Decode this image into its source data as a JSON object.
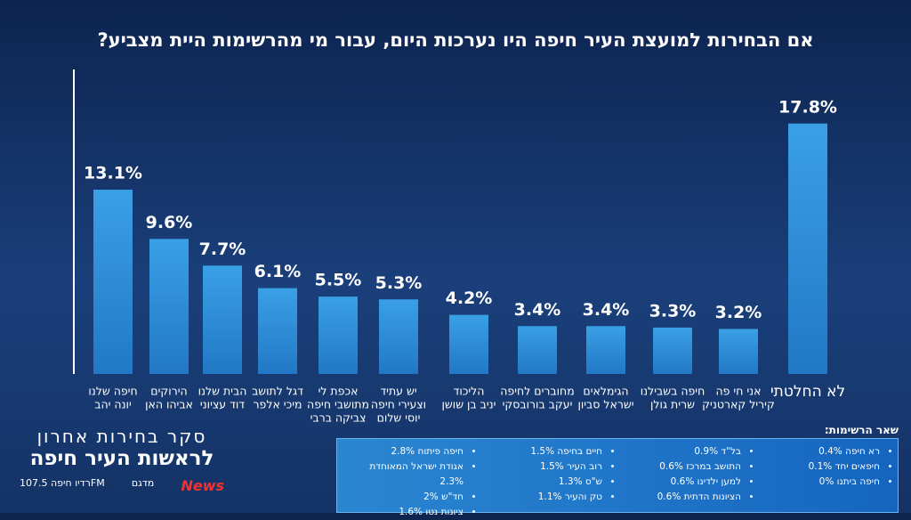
{
  "chart_data": {
    "type": "bar",
    "title": "אם הבחירות למועצת העיר חיפה היו נערכות היום, עבור מי מהרשימות היית מצביע?",
    "categories": [
      [
        "חיפה שלנו",
        "יונה יהב"
      ],
      [
        "הירוקים",
        "אביהו האן"
      ],
      [
        "הבית שלנו",
        "דוד עציוני"
      ],
      [
        "דגל לתושב",
        "מיכי אלפר"
      ],
      [
        "אכפת לי",
        "מתושבי חיפה",
        "צביקה ברבי"
      ],
      [
        "יש עתיד",
        "וצעירי חיפה",
        "יוסי שלום"
      ],
      [
        "הליכוד",
        "יניב בן שושן"
      ],
      [
        "מחוברים לחיפה",
        "יעקב בורובסקי"
      ],
      [
        "הגימלאים",
        "ישראל סביון"
      ],
      [
        "חיפה בשבילנו",
        "שרית גולן"
      ],
      [
        "אני חי פה",
        "קיריל קארטניק"
      ],
      [
        "לא החלטתי"
      ]
    ],
    "values": [
      13.1,
      9.6,
      7.7,
      6.1,
      5.5,
      5.3,
      4.2,
      3.4,
      3.4,
      3.3,
      3.2,
      17.8
    ],
    "value_labels": [
      "13.1%",
      "9.6%",
      "7.7%",
      "6.1%",
      "5.5%",
      "5.3%",
      "4.2%",
      "3.4%",
      "3.4%",
      "3.3%",
      "3.2%",
      "17.8%"
    ],
    "color": "#2f8fd8"
  },
  "branding": {
    "headline": "סקר בחירות אחרון",
    "subheadline": "לראשות העיר חיפה",
    "logos": [
      "רדיו חיפה 107.5FM",
      "מדגם",
      "News"
    ]
  },
  "other_lists": {
    "title": "שאר הרשימות:",
    "columns": [
      [
        "חיפה פיתוח 2.8%",
        "אגודת ישראל המאוחדת 2.3%",
        "חד\"ש 2%",
        "ציונות נטו 1.6%"
      ],
      [
        "חיים בחיפה 1.5%",
        "רוב העיר 1.5%",
        "ש\"ס 1.3%",
        "טק והעיר 1.1%"
      ],
      [
        "בל\"ד 0.9%",
        "התושב במרכז 0.6%",
        "למען ילדינו 0.6%",
        "הציונות הדתית 0.6%"
      ],
      [
        "רא חיפה 0.4%",
        "חיפאים יחד 0.1%",
        "חיפה ביתנו 0%"
      ]
    ]
  }
}
